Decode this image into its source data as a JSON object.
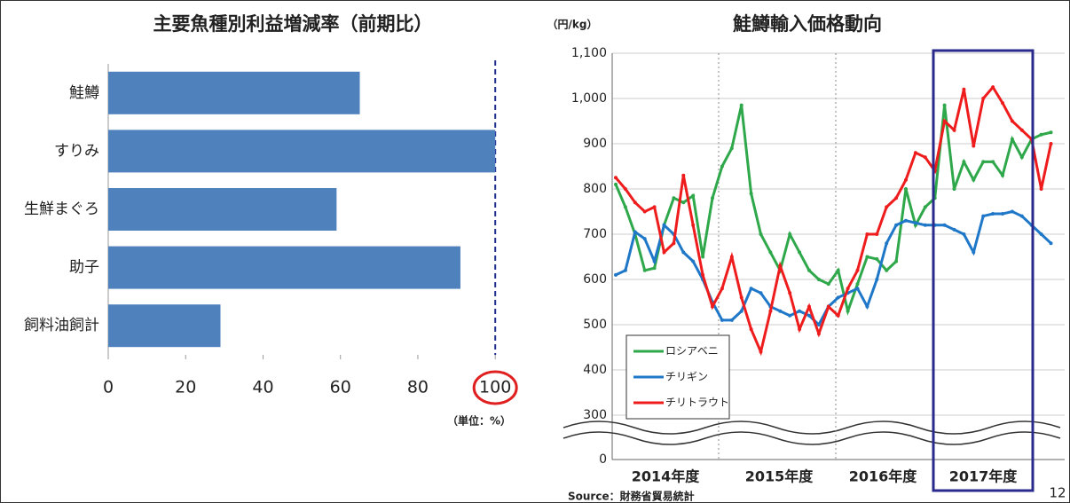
{
  "chart_data": [
    {
      "type": "hbar",
      "title": "主要魚種別利益増減率（前期比）",
      "categories": [
        "鮭鱒",
        "すりみ",
        "生鮮まぐろ",
        "助子",
        "飼料油飼計"
      ],
      "values": [
        65,
        100,
        59,
        91,
        29
      ],
      "color": "#4f81bd",
      "xlim": [
        0,
        105
      ],
      "xticks": [
        0,
        20,
        40,
        60,
        80,
        100
      ],
      "reference_line": 100,
      "unit": "（単位：%）"
    },
    {
      "type": "line",
      "title": "鮭鱒輸入価格動向",
      "y_unit": "（円/kg）",
      "groups": [
        "2014年度",
        "2015年度",
        "2016年度",
        "2017年度"
      ],
      "ylim": [
        0,
        1100
      ],
      "axis_break": [
        0,
        300
      ],
      "yticks": [
        0,
        300,
        400,
        500,
        600,
        700,
        800,
        900,
        {
          "value": 1000,
          "label": "1,000"
        },
        {
          "value": 1100,
          "label": "1,100"
        }
      ],
      "grid": true,
      "series": [
        {
          "name": "ロシアベニ",
          "color": "#2ea84a",
          "values": [
            810,
            760,
            700,
            620,
            625,
            720,
            780,
            770,
            785,
            650,
            780,
            850,
            890,
            985,
            790,
            700,
            660,
            620,
            700,
            660,
            620,
            600,
            590,
            620,
            530,
            590,
            650,
            645,
            620,
            640,
            800,
            720,
            760,
            780,
            985,
            800,
            860,
            820,
            860,
            860,
            830,
            910,
            870,
            910,
            920,
            925
          ]
        },
        {
          "name": "チリギン",
          "color": "#1f77c8",
          "values": [
            610,
            620,
            705,
            690,
            640,
            720,
            700,
            660,
            640,
            600,
            550,
            510,
            510,
            530,
            580,
            570,
            540,
            530,
            520,
            530,
            520,
            500,
            540,
            560,
            570,
            580,
            540,
            600,
            680,
            720,
            730,
            725,
            720,
            720,
            720,
            710,
            700,
            660,
            740,
            745,
            745,
            750,
            740,
            720,
            700,
            680
          ]
        },
        {
          "name": "チリトラウト",
          "color": "#ee1c1c",
          "values": [
            825,
            800,
            770,
            750,
            760,
            660,
            680,
            830,
            720,
            610,
            540,
            580,
            650,
            560,
            490,
            440,
            530,
            630,
            570,
            490,
            540,
            480,
            540,
            520,
            580,
            620,
            700,
            700,
            760,
            780,
            820,
            880,
            870,
            840,
            950,
            930,
            1020,
            895,
            1000,
            1025,
            990,
            950,
            930,
            910,
            800,
            900
          ]
        }
      ],
      "source": "Source：財務省貿易統計"
    },
    {
      "type": "page_number",
      "value": 12
    }
  ]
}
